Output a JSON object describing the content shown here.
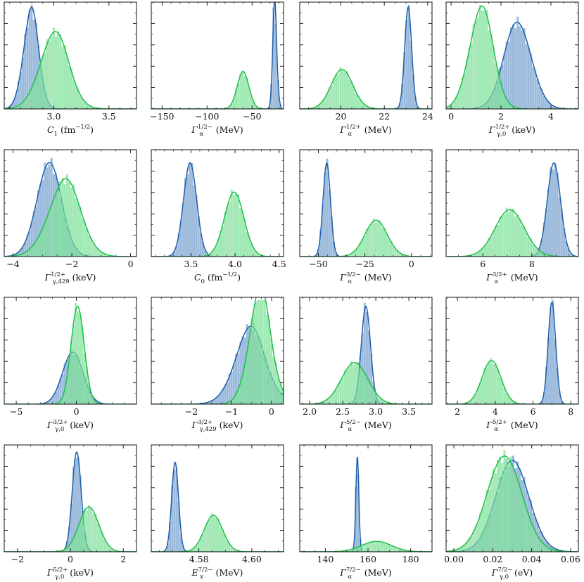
{
  "chart_data": {
    "type": "histogram-grid",
    "colors": {
      "blue": "#1f5fa8",
      "blue_fill": "#7aa3d0",
      "green": "#1fbf4a",
      "green_fill": "#7fe09a"
    },
    "panels": [
      {
        "xlabel": {
          "base": "C",
          "sub": "1",
          "sup": "",
          "rest": " (fm",
          "rest_sup": "−1/2",
          "rest2": ")"
        },
        "xlim": [
          2.55,
          3.75
        ],
        "ticks": [
          3.0,
          3.5
        ],
        "tick_labels": [
          "3.0",
          "3.5"
        ],
        "minor": 0.1,
        "series": [
          {
            "name": "blue",
            "center": 2.78,
            "sigma": 0.07,
            "amp": 0.94,
            "skew": 0.3
          },
          {
            "name": "green",
            "center": 2.99,
            "sigma": 0.13,
            "amp": 0.73,
            "skew": 0.2
          }
        ]
      },
      {
        "xlabel": {
          "base": "Γ",
          "sub": "α",
          "sup": "1/2−",
          "rest": " (MeV)",
          "rest_sup": "",
          "rest2": ""
        },
        "xlim": [
          -162,
          -15
        ],
        "ticks": [
          -150,
          -100,
          -50
        ],
        "tick_labels": [
          "−150",
          "−100",
          "−50"
        ],
        "minor": 10,
        "series": [
          {
            "name": "blue",
            "center": -24,
            "sigma": 2.4,
            "amp": 0.97,
            "skew": -0.5
          },
          {
            "name": "green",
            "center": -60,
            "sigma": 6.5,
            "amp": 0.36,
            "skew": 0
          }
        ]
      },
      {
        "xlabel": {
          "base": "Γ",
          "sub": "α",
          "sup": "1/2+",
          "rest": " (MeV)",
          "rest_sup": "",
          "rest2": ""
        },
        "xlim": [
          18.1,
          24.2
        ],
        "ticks": [
          20,
          22,
          24
        ],
        "tick_labels": [
          "20",
          "22",
          "24"
        ],
        "minor": 0.5,
        "series": [
          {
            "name": "blue",
            "center": 23.1,
            "sigma": 0.16,
            "amp": 0.98,
            "skew": 0
          },
          {
            "name": "green",
            "center": 20.05,
            "sigma": 0.5,
            "amp": 0.38,
            "skew": 0
          }
        ]
      },
      {
        "xlabel": {
          "base": "Γ",
          "sub": "γ,0",
          "sup": "1/2+",
          "rest": " (keV)",
          "rest_sup": "",
          "rest2": ""
        },
        "xlim": [
          -0.2,
          5.1
        ],
        "ticks": [
          0,
          2,
          4
        ],
        "tick_labels": [
          "0",
          "2",
          "4"
        ],
        "minor": 0.5,
        "series": [
          {
            "name": "blue",
            "center": 2.7,
            "sigma": 0.55,
            "amp": 0.83,
            "skew": -0.1
          },
          {
            "name": "green",
            "center": 1.15,
            "sigma": 0.48,
            "amp": 0.97,
            "skew": 0.2
          }
        ]
      },
      {
        "xlabel": {
          "base": "Γ",
          "sub": "γ,429",
          "sup": "1/2+",
          "rest": " (keV)",
          "rest_sup": "",
          "rest2": ""
        },
        "xlim": [
          -4.3,
          0.2
        ],
        "ticks": [
          -4,
          -2,
          0
        ],
        "tick_labels": [
          "−4",
          "−2",
          "0"
        ],
        "minor": 0.5,
        "series": [
          {
            "name": "blue",
            "center": -2.8,
            "sigma": 0.42,
            "amp": 0.9,
            "skew": 0.1
          },
          {
            "name": "green",
            "center": -2.35,
            "sigma": 0.55,
            "amp": 0.72,
            "skew": 0.3
          }
        ]
      },
      {
        "xlabel": {
          "base": "C",
          "sub": "0",
          "sup": "",
          "rest": " (fm",
          "rest_sup": "−1/2",
          "rest2": ")"
        },
        "xlim": [
          3.05,
          4.55
        ],
        "ticks": [
          3.5,
          4.0,
          4.5
        ],
        "tick_labels": [
          "3.5",
          "4.0",
          "4.5"
        ],
        "minor": 0.1,
        "series": [
          {
            "name": "blue",
            "center": 3.49,
            "sigma": 0.075,
            "amp": 0.9,
            "skew": 0
          },
          {
            "name": "green",
            "center": 3.99,
            "sigma": 0.11,
            "amp": 0.62,
            "skew": 0
          }
        ]
      },
      {
        "xlabel": {
          "base": "Γ",
          "sub": "α",
          "sup": "3/2−",
          "rest": " (MeV)",
          "rest_sup": "",
          "rest2": ""
        },
        "xlim": [
          -60,
          11
        ],
        "ticks": [
          -50,
          -25,
          0
        ],
        "tick_labels": [
          "−50",
          "−25",
          "0"
        ],
        "minor": 5,
        "series": [
          {
            "name": "blue",
            "center": -45.5,
            "sigma": 2.0,
            "amp": 0.9,
            "skew": 0
          },
          {
            "name": "green",
            "center": -19,
            "sigma": 6,
            "amp": 0.35,
            "skew": 0
          }
        ]
      },
      {
        "xlabel": {
          "base": "Γ",
          "sub": "α",
          "sup": "3/2+",
          "rest": " (MeV)",
          "rest_sup": "",
          "rest2": ""
        },
        "xlim": [
          4.5,
          9.9
        ],
        "ticks": [
          6,
          8
        ],
        "tick_labels": [
          "6",
          "8"
        ],
        "minor": 0.5,
        "series": [
          {
            "name": "blue",
            "center": 8.9,
            "sigma": 0.27,
            "amp": 0.9,
            "skew": 0
          },
          {
            "name": "green",
            "center": 7.1,
            "sigma": 0.6,
            "amp": 0.45,
            "skew": 0
          }
        ]
      },
      {
        "xlabel": {
          "base": "Γ",
          "sub": "γ,0",
          "sup": "3/2+",
          "rest": " (keV)",
          "rest_sup": "",
          "rest2": ""
        },
        "xlim": [
          -6,
          5
        ],
        "ticks": [
          -5,
          0
        ],
        "tick_labels": [
          "−5",
          "0"
        ],
        "minor": 1,
        "series": [
          {
            "name": "blue",
            "center": -0.3,
            "sigma": 0.85,
            "amp": 0.5,
            "skew": 0
          },
          {
            "name": "green",
            "center": 0.1,
            "sigma": 0.55,
            "amp": 0.94,
            "skew": 0
          }
        ]
      },
      {
        "xlabel": {
          "base": "Γ",
          "sub": "γ,429",
          "sup": "3/2+",
          "rest": " (keV)",
          "rest_sup": "",
          "rest2": ""
        },
        "xlim": [
          -3,
          0.3
        ],
        "ticks": [
          -2,
          -1,
          0
        ],
        "tick_labels": [
          "−2",
          "−1",
          "0"
        ],
        "minor": 0.25,
        "series": [
          {
            "name": "blue",
            "center": -0.3,
            "sigma": 0.45,
            "amp": 0.62,
            "skew": -0.8
          },
          {
            "name": "green",
            "center": -0.12,
            "sigma": 0.32,
            "amp": 0.94,
            "skew": -0.8
          }
        ]
      },
      {
        "xlabel": {
          "base": "Γ",
          "sub": "α",
          "sup": "5/2−",
          "rest": " (MeV)",
          "rest_sup": "",
          "rest2": ""
        },
        "xlim": [
          1.85,
          3.85
        ],
        "ticks": [
          2.0,
          2.5,
          3.0,
          3.5
        ],
        "tick_labels": [
          "2.0",
          "2.5",
          "3.0",
          "3.5"
        ],
        "minor": 0.1,
        "series": [
          {
            "name": "blue",
            "center": 2.85,
            "sigma": 0.07,
            "amp": 0.94,
            "skew": 0
          },
          {
            "name": "green",
            "center": 2.68,
            "sigma": 0.2,
            "amp": 0.4,
            "skew": 0
          }
        ]
      },
      {
        "xlabel": {
          "base": "Γ",
          "sub": "α",
          "sup": "5/2+",
          "rest": " (MeV)",
          "rest_sup": "",
          "rest2": ""
        },
        "xlim": [
          1.4,
          8.4
        ],
        "ticks": [
          2,
          4,
          6,
          8
        ],
        "tick_labels": [
          "2",
          "4",
          "6",
          "8"
        ],
        "minor": 0.5,
        "series": [
          {
            "name": "blue",
            "center": 7.0,
            "sigma": 0.2,
            "amp": 0.98,
            "skew": 0
          },
          {
            "name": "green",
            "center": 3.8,
            "sigma": 0.5,
            "amp": 0.42,
            "skew": 0
          }
        ]
      },
      {
        "xlabel": {
          "base": "Γ",
          "sub": "γ,0",
          "sup": "5/2+",
          "rest": " (keV)",
          "rest_sup": "",
          "rest2": ""
        },
        "xlim": [
          -2.5,
          2.5
        ],
        "ticks": [
          -2,
          0,
          2
        ],
        "tick_labels": [
          "−2",
          "0",
          "2"
        ],
        "minor": 0.5,
        "series": [
          {
            "name": "blue",
            "center": 0.24,
            "sigma": 0.17,
            "amp": 0.96,
            "skew": 0
          },
          {
            "name": "green",
            "center": 0.7,
            "sigma": 0.38,
            "amp": 0.43,
            "skew": 0
          }
        ]
      },
      {
        "xlabel": {
          "base": "E",
          "sub": "x",
          "sup": "7/2−",
          "rest": " (MeV)",
          "rest_sup": "",
          "rest2": ""
        },
        "xlim": [
          4.562,
          4.612
        ],
        "ticks": [
          4.58,
          4.6
        ],
        "tick_labels": [
          "4.58",
          "4.60"
        ],
        "minor": 0.005,
        "series": [
          {
            "name": "blue",
            "center": 4.571,
            "sigma": 0.0013,
            "amp": 0.86,
            "skew": 0
          },
          {
            "name": "green",
            "center": 4.5855,
            "sigma": 0.0035,
            "amp": 0.35,
            "skew": 0
          }
        ]
      },
      {
        "xlabel": {
          "base": "Γ",
          "sub": "α",
          "sup": "7/2−",
          "rest": " (MeV)",
          "rest_sup": "",
          "rest2": ""
        },
        "xlim": [
          128,
          190
        ],
        "ticks": [
          140,
          160,
          180
        ],
        "tick_labels": [
          "140",
          "160",
          "180"
        ],
        "minor": 5,
        "series": [
          {
            "name": "blue",
            "center": 155,
            "sigma": 0.7,
            "amp": 0.92,
            "skew": 0
          },
          {
            "name": "green",
            "center": 164,
            "sigma": 7,
            "amp": 0.1,
            "skew": 0
          }
        ]
      },
      {
        "xlabel": {
          "base": "Γ",
          "sub": "γ,0",
          "sup": "7/2−",
          "rest": " (eV)",
          "rest_sup": "",
          "rest2": ""
        },
        "xlim": [
          -0.004,
          0.064
        ],
        "ticks": [
          0.0,
          0.02,
          0.04,
          0.06
        ],
        "tick_labels": [
          "0.00",
          "0.02",
          "0.04",
          "0.06"
        ],
        "minor": 0.005,
        "series": [
          {
            "name": "blue",
            "center": 0.03,
            "sigma": 0.0085,
            "amp": 0.88,
            "skew": 0
          },
          {
            "name": "green",
            "center": 0.026,
            "sigma": 0.009,
            "amp": 0.92,
            "skew": 0
          }
        ]
      }
    ]
  }
}
